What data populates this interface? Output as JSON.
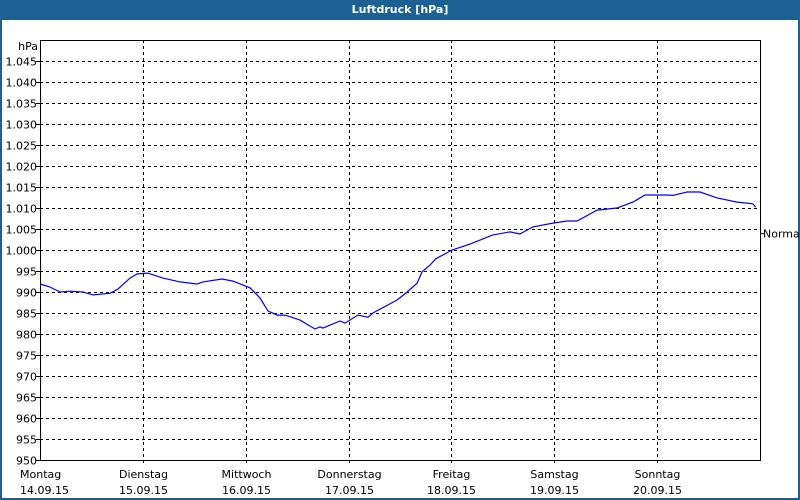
{
  "window": {
    "title": "Luftdruck [hPa]",
    "title_bar_color": "#1c6094"
  },
  "chart_data": {
    "type": "line",
    "title": "Luftdruck [hPa]",
    "ylabel": "hPa",
    "ylim": [
      950,
      1050
    ],
    "yticks": [
      950,
      955,
      960,
      965,
      970,
      975,
      980,
      985,
      990,
      995,
      1000,
      1005,
      1010,
      1015,
      1020,
      1025,
      1030,
      1035,
      1040,
      1045
    ],
    "ytick_labels": [
      "950",
      "955",
      "960",
      "965",
      "970",
      "975",
      "980",
      "985",
      "990",
      "995",
      "1.000",
      "1.005",
      "1.010",
      "1.015",
      "1.020",
      "1.025",
      "1.030",
      "1.035",
      "1.040",
      "1.045"
    ],
    "xlim": [
      "2015-09-14T00:00",
      "2015-09-21T00:00"
    ],
    "xticks": [
      {
        "date": "2015-09-14T00:00",
        "day": "Montag",
        "label": "14.09.15"
      },
      {
        "date": "2015-09-15T00:00",
        "day": "Dienstag",
        "label": "15.09.15"
      },
      {
        "date": "2015-09-16T00:00",
        "day": "Mittwoch",
        "label": "16.09.15"
      },
      {
        "date": "2015-09-17T00:00",
        "day": "Donnerstag",
        "label": "17.09.15"
      },
      {
        "date": "2015-09-18T00:00",
        "day": "Freitag",
        "label": "18.09.15"
      },
      {
        "date": "2015-09-19T00:00",
        "day": "Samstag",
        "label": "19.09.15"
      },
      {
        "date": "2015-09-20T00:00",
        "day": "Sonntag",
        "label": "20.09.15"
      }
    ],
    "grid": true,
    "reference_line": {
      "label": "Normal",
      "value": 1004
    },
    "series": [
      {
        "color": "#0000ff",
        "points": [
          [
            "2015-09-14T00:00",
            991.9
          ],
          [
            "2015-09-14T02:20",
            991.2
          ],
          [
            "2015-09-14T04:40",
            990.0
          ],
          [
            "2015-09-14T07:00",
            990.2
          ],
          [
            "2015-09-14T10:00",
            990.0
          ],
          [
            "2015-09-14T12:20",
            989.3
          ],
          [
            "2015-09-14T16:20",
            989.7
          ],
          [
            "2015-09-14T18:10",
            990.7
          ],
          [
            "2015-09-14T21:00",
            993.3
          ],
          [
            "2015-09-14T22:40",
            994.3
          ],
          [
            "2015-09-15T01:10",
            994.5
          ],
          [
            "2015-09-15T04:40",
            993.3
          ],
          [
            "2015-09-15T08:40",
            992.4
          ],
          [
            "2015-09-15T12:40",
            991.9
          ],
          [
            "2015-09-15T14:00",
            992.4
          ],
          [
            "2015-09-15T18:30",
            993.1
          ],
          [
            "2015-09-15T21:00",
            992.6
          ],
          [
            "2015-09-16T01:00",
            991.0
          ],
          [
            "2015-09-16T03:20",
            988.6
          ],
          [
            "2015-09-16T05:10",
            985.5
          ],
          [
            "2015-09-16T07:20",
            984.5
          ],
          [
            "2015-09-16T09:10",
            984.5
          ],
          [
            "2015-09-16T12:40",
            983.3
          ],
          [
            "2015-09-16T16:10",
            981.2
          ],
          [
            "2015-09-16T17:20",
            981.7
          ],
          [
            "2015-09-16T18:00",
            981.4
          ],
          [
            "2015-09-16T22:00",
            983.1
          ],
          [
            "2015-09-16T23:10",
            982.6
          ],
          [
            "2015-09-17T02:10",
            984.5
          ],
          [
            "2015-09-17T04:30",
            984.0
          ],
          [
            "2015-09-17T05:40",
            985.0
          ],
          [
            "2015-09-17T11:20",
            988.1
          ],
          [
            "2015-09-17T13:40",
            990.0
          ],
          [
            "2015-09-17T16:00",
            992.1
          ],
          [
            "2015-09-17T17:10",
            994.8
          ],
          [
            "2015-09-17T19:00",
            996.4
          ],
          [
            "2015-09-17T20:20",
            997.9
          ],
          [
            "2015-09-18T00:10",
            1000.0
          ],
          [
            "2015-09-18T04:20",
            1001.4
          ],
          [
            "2015-09-18T09:40",
            1003.6
          ],
          [
            "2015-09-18T13:40",
            1004.3
          ],
          [
            "2015-09-18T16:00",
            1003.8
          ],
          [
            "2015-09-18T19:00",
            1005.5
          ],
          [
            "2015-09-18T23:40",
            1006.4
          ],
          [
            "2015-09-19T03:00",
            1006.9
          ],
          [
            "2015-09-19T05:20",
            1006.9
          ],
          [
            "2015-09-19T10:00",
            1009.5
          ],
          [
            "2015-09-19T14:40",
            1010.0
          ],
          [
            "2015-09-19T18:20",
            1011.4
          ],
          [
            "2015-09-19T21:10",
            1013.1
          ],
          [
            "2015-09-20T02:20",
            1013.1
          ],
          [
            "2015-09-20T03:40",
            1013.0
          ],
          [
            "2015-09-20T07:00",
            1013.8
          ],
          [
            "2015-09-20T10:00",
            1013.8
          ],
          [
            "2015-09-20T14:00",
            1012.4
          ],
          [
            "2015-09-20T18:40",
            1011.4
          ],
          [
            "2015-09-20T22:20",
            1011.0
          ],
          [
            "2015-09-20T23:00",
            1010.2
          ]
        ]
      }
    ]
  }
}
